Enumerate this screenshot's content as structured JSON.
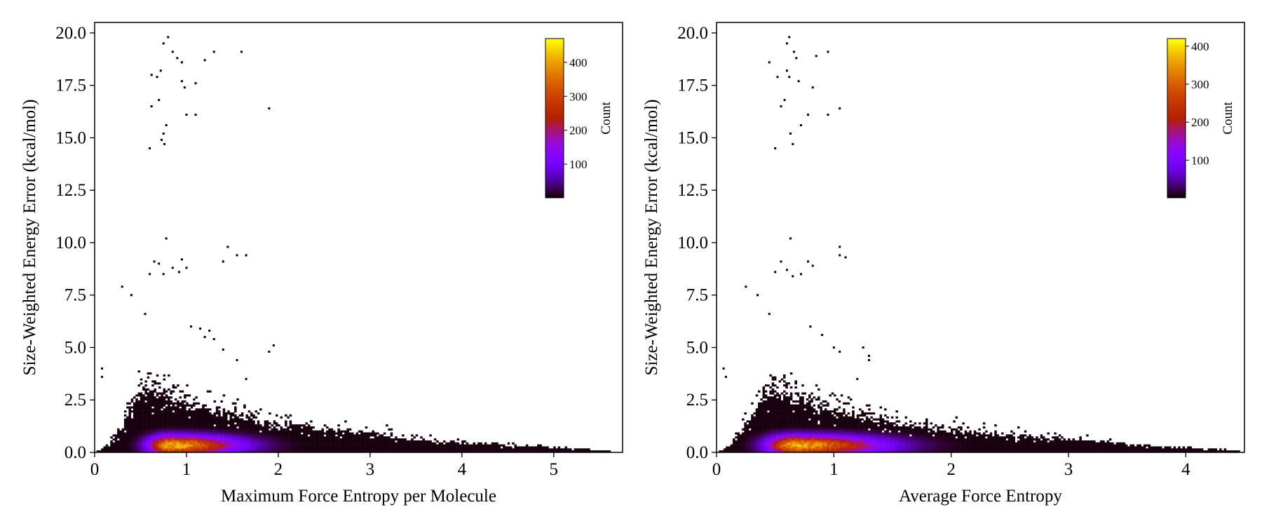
{
  "chart_data": [
    {
      "type": "heatmap",
      "xlabel": "Maximum Force Entropy per Molecule",
      "ylabel": "Size-Weighted Energy Error (kcal/mol)",
      "xlim": [
        0,
        5.75
      ],
      "ylim": [
        0,
        20.5
      ],
      "xticks": [
        0,
        1,
        2,
        3,
        4,
        5
      ],
      "yticks": [
        0.0,
        2.5,
        5.0,
        7.5,
        10.0,
        12.5,
        15.0,
        17.5,
        20.0
      ],
      "colorbar": {
        "label": "Count",
        "ticks": [
          100,
          200,
          300,
          400
        ],
        "range": [
          1,
          470
        ],
        "colormap": "gnuplot"
      },
      "density_core": {
        "peak_x": 0.8,
        "peak_y": 0.3,
        "peak_count": 470
      },
      "ridge": [
        [
          0.05,
          0.15
        ],
        [
          0.3,
          1.4
        ],
        [
          0.5,
          2.6
        ],
        [
          0.8,
          2.3
        ],
        [
          1.0,
          1.9
        ],
        [
          1.5,
          1.55
        ],
        [
          2.0,
          1.1
        ],
        [
          2.5,
          0.9
        ],
        [
          3.0,
          0.75
        ],
        [
          3.5,
          0.5
        ],
        [
          4.0,
          0.35
        ],
        [
          4.5,
          0.25
        ],
        [
          5.0,
          0.15
        ],
        [
          5.6,
          0.05
        ]
      ],
      "outlier_points": [
        [
          0.08,
          4.0
        ],
        [
          0.08,
          3.6
        ],
        [
          0.3,
          7.9
        ],
        [
          0.4,
          7.5
        ],
        [
          0.55,
          6.6
        ],
        [
          0.6,
          14.5
        ],
        [
          0.62,
          16.5
        ],
        [
          0.62,
          18.0
        ],
        [
          0.68,
          17.9
        ],
        [
          0.7,
          16.8
        ],
        [
          0.72,
          18.2
        ],
        [
          0.73,
          14.9
        ],
        [
          0.75,
          15.2
        ],
        [
          0.78,
          15.6
        ],
        [
          0.76,
          14.7
        ],
        [
          0.75,
          19.5
        ],
        [
          0.8,
          19.8
        ],
        [
          0.85,
          19.1
        ],
        [
          0.9,
          18.8
        ],
        [
          0.95,
          18.6
        ],
        [
          0.95,
          17.7
        ],
        [
          0.98,
          17.4
        ],
        [
          1.0,
          16.1
        ],
        [
          1.1,
          17.6
        ],
        [
          1.1,
          16.1
        ],
        [
          1.2,
          18.7
        ],
        [
          1.3,
          19.1
        ],
        [
          1.6,
          19.1
        ],
        [
          1.9,
          16.4
        ],
        [
          0.6,
          8.5
        ],
        [
          0.65,
          9.1
        ],
        [
          0.7,
          9.0
        ],
        [
          0.75,
          8.5
        ],
        [
          0.78,
          10.2
        ],
        [
          0.85,
          8.8
        ],
        [
          0.92,
          8.6
        ],
        [
          0.95,
          9.2
        ],
        [
          1.0,
          8.8
        ],
        [
          1.4,
          9.1
        ],
        [
          1.45,
          9.8
        ],
        [
          1.55,
          9.4
        ],
        [
          1.65,
          9.4
        ],
        [
          1.2,
          5.5
        ],
        [
          1.25,
          5.8
        ],
        [
          1.3,
          5.4
        ],
        [
          1.4,
          4.9
        ],
        [
          1.55,
          4.4
        ],
        [
          1.65,
          3.5
        ],
        [
          1.9,
          4.8
        ],
        [
          1.95,
          5.1
        ],
        [
          1.05,
          6.0
        ],
        [
          1.15,
          5.9
        ]
      ]
    },
    {
      "type": "heatmap",
      "xlabel": "Average Force Entropy",
      "ylabel": "Size-Weighted Energy Error (kcal/mol)",
      "xlim": [
        0,
        4.5
      ],
      "ylim": [
        0,
        20.5
      ],
      "xticks": [
        0,
        1,
        2,
        3,
        4
      ],
      "yticks": [
        0.0,
        2.5,
        5.0,
        7.5,
        10.0,
        12.5,
        15.0,
        17.5,
        20.0
      ],
      "colorbar": {
        "label": "Count",
        "ticks": [
          100,
          200,
          300,
          400
        ],
        "range": [
          1,
          420
        ],
        "colormap": "gnuplot"
      },
      "density_core": {
        "peak_x": 0.65,
        "peak_y": 0.3,
        "peak_count": 420
      },
      "ridge": [
        [
          0.05,
          0.15
        ],
        [
          0.25,
          1.4
        ],
        [
          0.45,
          2.6
        ],
        [
          0.65,
          2.3
        ],
        [
          0.85,
          1.9
        ],
        [
          1.2,
          1.5
        ],
        [
          1.6,
          1.1
        ],
        [
          2.0,
          0.9
        ],
        [
          2.5,
          0.65
        ],
        [
          3.0,
          0.5
        ],
        [
          3.4,
          0.35
        ],
        [
          3.8,
          0.2
        ],
        [
          4.2,
          0.1
        ],
        [
          4.45,
          0.05
        ]
      ],
      "outlier_points": [
        [
          0.06,
          4.0
        ],
        [
          0.08,
          3.6
        ],
        [
          0.25,
          7.9
        ],
        [
          0.35,
          7.5
        ],
        [
          0.45,
          6.6
        ],
        [
          0.45,
          18.6
        ],
        [
          0.5,
          14.5
        ],
        [
          0.52,
          17.9
        ],
        [
          0.55,
          16.5
        ],
        [
          0.58,
          16.8
        ],
        [
          0.6,
          18.2
        ],
        [
          0.62,
          17.9
        ],
        [
          0.63,
          15.2
        ],
        [
          0.65,
          14.7
        ],
        [
          0.6,
          19.5
        ],
        [
          0.62,
          19.8
        ],
        [
          0.66,
          19.1
        ],
        [
          0.68,
          18.8
        ],
        [
          0.7,
          17.7
        ],
        [
          0.72,
          15.6
        ],
        [
          0.78,
          16.1
        ],
        [
          0.82,
          17.4
        ],
        [
          0.85,
          18.9
        ],
        [
          0.95,
          16.1
        ],
        [
          0.95,
          19.1
        ],
        [
          1.05,
          16.4
        ],
        [
          0.5,
          8.6
        ],
        [
          0.55,
          9.1
        ],
        [
          0.6,
          8.7
        ],
        [
          0.65,
          8.4
        ],
        [
          0.63,
          10.2
        ],
        [
          0.72,
          8.5
        ],
        [
          0.78,
          9.1
        ],
        [
          0.82,
          8.9
        ],
        [
          1.05,
          9.8
        ],
        [
          1.05,
          9.4
        ],
        [
          1.1,
          9.3
        ],
        [
          1.0,
          5.0
        ],
        [
          1.05,
          4.8
        ],
        [
          1.25,
          5.0
        ],
        [
          1.3,
          4.6
        ],
        [
          1.3,
          4.4
        ],
        [
          1.2,
          3.5
        ],
        [
          0.8,
          6.0
        ],
        [
          0.9,
          5.6
        ]
      ]
    }
  ]
}
